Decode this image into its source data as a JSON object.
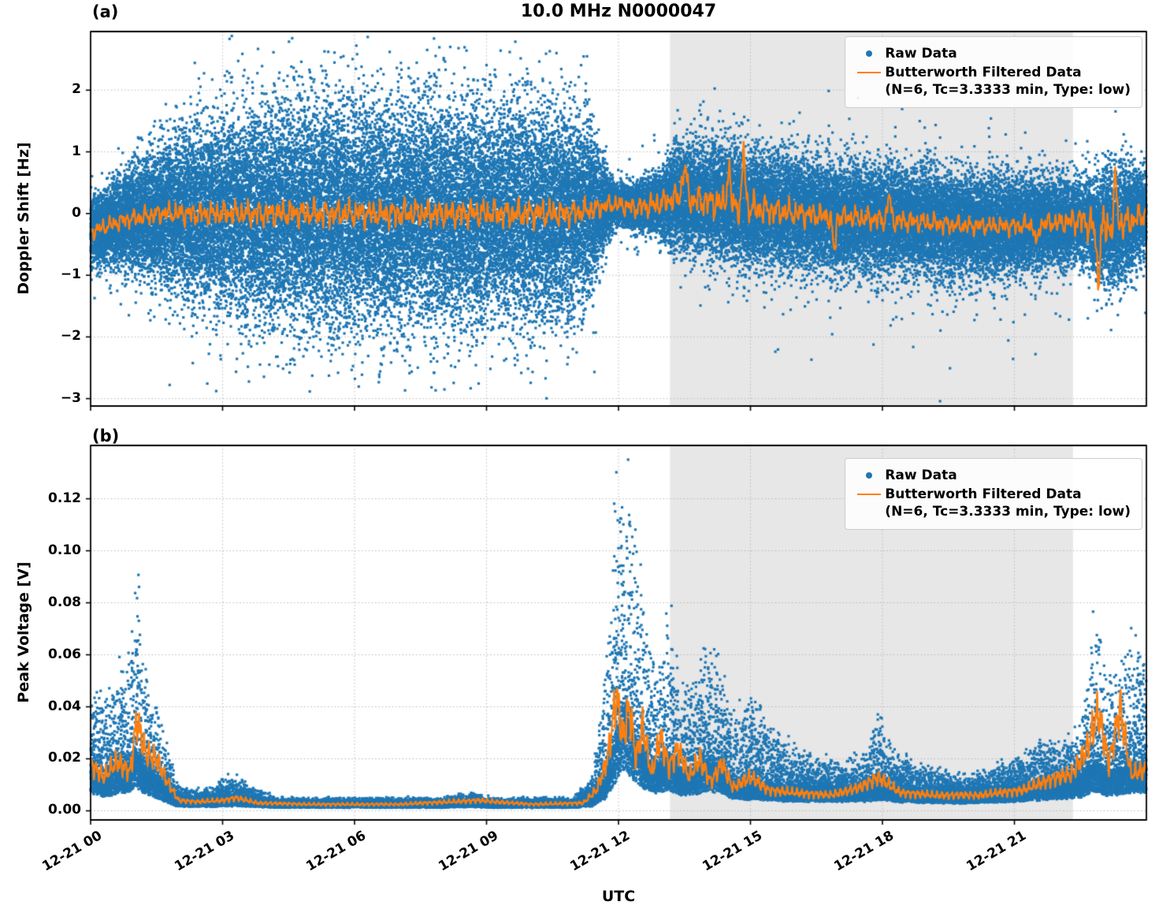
{
  "title": "10.0 MHz N0000047",
  "legend": {
    "raw_label": "Raw Data",
    "filtered_label": "Butterworth Filtered Data",
    "filtered_sublabel": "(N=6, Tc=3.3333 min, Type: low)"
  },
  "colors": {
    "raw": "#1f77b4",
    "filtered": "#ff7f0e",
    "shade": "#e7e7e7",
    "grid": "#b8b8b8"
  },
  "chart_data": {
    "type": "scatter",
    "title": "10.0 MHz N0000047",
    "x_axis": {
      "label": "UTC",
      "xlim": [
        0,
        24
      ],
      "tick_hours": [
        0,
        3,
        6,
        9,
        12,
        15,
        18,
        21
      ],
      "tick_labels": [
        "12-21 00",
        "12-21 03",
        "12-21 06",
        "12-21 09",
        "12-21 12",
        "12-21 15",
        "12-21 18",
        "12-21 21"
      ]
    },
    "shaded_region_hours": [
      13.17,
      22.33
    ],
    "panels": [
      {
        "panel_label": "(a)",
        "ylabel": "Doppler Shift [Hz]",
        "ylim": [
          -3.12,
          2.95
        ],
        "yticks": [
          2,
          1,
          0,
          -1,
          -2,
          -3
        ],
        "ytick_labels": [
          "2",
          "1",
          "0",
          "−1",
          "−2",
          "−3"
        ],
        "series": [
          {
            "name": "Raw Data",
            "type": "scatter",
            "points_per_hour": 2400,
            "outlier_fraction": 0.015,
            "outlier_scale": 2.3,
            "envelope": {
              "hours": [
                0,
                0.4,
                0.8,
                1.2,
                1.6,
                2.0,
                2.5,
                3.0,
                3.5,
                4.0,
                5.0,
                6.0,
                7.0,
                8.0,
                9.0,
                10.0,
                10.8,
                11.3,
                11.6,
                11.9,
                12.4,
                12.9,
                13.3,
                14.0,
                15.0,
                16.0,
                17.0,
                18.0,
                19.0,
                20.0,
                21.0,
                22.0,
                22.5,
                22.9,
                23.3,
                23.7,
                24.0
              ],
              "center": [
                -0.3,
                -0.2,
                -0.1,
                -0.05,
                0,
                0,
                0,
                0,
                0,
                0,
                0,
                0,
                0,
                0,
                0,
                0,
                0,
                0.05,
                0.1,
                0.15,
                0.1,
                0.15,
                0.25,
                0.2,
                0.1,
                0.0,
                -0.05,
                -0.1,
                -0.15,
                -0.2,
                -0.2,
                -0.15,
                -0.1,
                -0.25,
                -0.2,
                -0.1,
                0
              ],
              "sigma": [
                0.25,
                0.3,
                0.38,
                0.45,
                0.55,
                0.62,
                0.7,
                0.75,
                0.8,
                0.85,
                0.88,
                0.88,
                0.88,
                0.86,
                0.86,
                0.85,
                0.82,
                0.75,
                0.4,
                0.17,
                0.17,
                0.22,
                0.4,
                0.44,
                0.44,
                0.43,
                0.42,
                0.42,
                0.42,
                0.4,
                0.38,
                0.35,
                0.3,
                0.42,
                0.5,
                0.4,
                0.3
              ]
            }
          },
          {
            "name": "Butterworth Filtered Data (N=6, Tc=3.3333 min, Type: low)",
            "type": "line",
            "amp": {
              "hours": [
                0,
                1,
                2,
                3,
                5,
                8,
                10.5,
                11.4,
                11.8,
                12.3,
                12.8,
                13.3,
                14.0,
                14.6,
                15.2,
                16,
                17,
                18,
                19,
                20,
                21,
                22,
                22.6,
                23.0,
                23.4,
                24
              ],
              "values": [
                0.15,
                0.18,
                0.22,
                0.25,
                0.27,
                0.28,
                0.28,
                0.22,
                0.18,
                0.2,
                0.24,
                0.26,
                0.3,
                0.34,
                0.3,
                0.25,
                0.22,
                0.22,
                0.2,
                0.18,
                0.18,
                0.2,
                0.3,
                0.45,
                0.32,
                0.22
              ]
            },
            "events": [
              [
                13.5,
                0.5,
                0.07
              ],
              [
                14.5,
                0.55,
                0.05
              ],
              [
                14.85,
                0.9,
                0.045
              ],
              [
                16.9,
                -0.55,
                0.05
              ],
              [
                18.15,
                0.4,
                0.05
              ],
              [
                21.5,
                -0.35,
                0.05
              ],
              [
                22.9,
                -0.8,
                0.05
              ],
              [
                23.3,
                0.7,
                0.05
              ]
            ]
          }
        ]
      },
      {
        "panel_label": "(b)",
        "ylabel": "Peak Voltage [V]",
        "ylim": [
          -0.0035,
          0.1405
        ],
        "yticks": [
          0.12,
          0.1,
          0.08,
          0.06,
          0.04,
          0.02,
          0.0
        ],
        "ytick_labels": [
          "0.12",
          "0.10",
          "0.08",
          "0.06",
          "0.04",
          "0.02",
          "0.00"
        ],
        "series": [
          {
            "name": "Raw Data",
            "type": "scatter",
            "points_per_hour": 1500,
            "envelope": {
              "hours": [
                0,
                0.3,
                0.6,
                0.9,
                1.05,
                1.2,
                1.45,
                1.7,
                1.95,
                2.3,
                2.8,
                3.1,
                3.4,
                3.8,
                4.2,
                6.0,
                8.0,
                8.7,
                9.0,
                10.0,
                11.0,
                11.4,
                11.7,
                11.9,
                12.1,
                12.3,
                12.6,
                12.9,
                13.15,
                13.4,
                13.7,
                14.0,
                14.3,
                14.6,
                15.0,
                15.4,
                15.8,
                16.3,
                17.0,
                17.6,
                17.9,
                18.3,
                19.0,
                20.0,
                21.0,
                21.6,
                22.1,
                22.5,
                22.85,
                23.1,
                23.4,
                23.7,
                24.0
              ],
              "base": [
                0.012,
                0.009,
                0.011,
                0.013,
                0.016,
                0.012,
                0.009,
                0.006,
                0.003,
                0.0025,
                0.0025,
                0.003,
                0.003,
                0.0025,
                0.002,
                0.002,
                0.002,
                0.0025,
                0.002,
                0.002,
                0.002,
                0.003,
                0.008,
                0.018,
                0.028,
                0.022,
                0.014,
                0.012,
                0.014,
                0.01,
                0.011,
                0.013,
                0.012,
                0.008,
                0.007,
                0.007,
                0.006,
                0.006,
                0.006,
                0.006,
                0.007,
                0.006,
                0.005,
                0.005,
                0.006,
                0.007,
                0.008,
                0.009,
                0.013,
                0.01,
                0.011,
                0.012,
                0.012
              ],
              "peak": [
                0.045,
                0.04,
                0.05,
                0.055,
                0.085,
                0.055,
                0.04,
                0.025,
                0.01,
                0.007,
                0.008,
                0.012,
                0.011,
                0.007,
                0.004,
                0.004,
                0.004,
                0.006,
                0.004,
                0.004,
                0.004,
                0.012,
                0.05,
                0.1,
                0.132,
                0.11,
                0.07,
                0.05,
                0.077,
                0.045,
                0.045,
                0.06,
                0.055,
                0.035,
                0.042,
                0.032,
                0.025,
                0.02,
                0.016,
                0.022,
                0.033,
                0.02,
                0.015,
                0.012,
                0.018,
                0.025,
                0.024,
                0.03,
                0.077,
                0.045,
                0.05,
                0.065,
                0.06
              ]
            }
          },
          {
            "name": "Butterworth Filtered Data (N=6, Tc=3.3333 min, Type: low)",
            "type": "line",
            "wiggle_rel": 0.3,
            "keypoints": {
              "hours": [
                0,
                0.3,
                0.6,
                0.9,
                1.05,
                1.25,
                1.5,
                1.75,
                2.0,
                2.4,
                3.0,
                3.3,
                3.8,
                5.0,
                7.0,
                8.8,
                10.0,
                11.2,
                11.5,
                11.75,
                11.95,
                12.1,
                12.25,
                12.4,
                12.55,
                12.75,
                12.95,
                13.15,
                13.35,
                13.6,
                13.85,
                14.1,
                14.35,
                14.6,
                15.0,
                15.4,
                16.0,
                16.8,
                17.5,
                17.9,
                18.4,
                19.2,
                20.2,
                21.2,
                21.8,
                22.3,
                22.65,
                22.9,
                23.15,
                23.4,
                23.65,
                24.0
              ],
              "values": [
                0.018,
                0.013,
                0.019,
                0.015,
                0.035,
                0.022,
                0.02,
                0.011,
                0.004,
                0.0035,
                0.004,
                0.005,
                0.003,
                0.0025,
                0.0025,
                0.004,
                0.0025,
                0.003,
                0.008,
                0.02,
                0.044,
                0.028,
                0.04,
                0.02,
                0.033,
                0.014,
                0.028,
                0.017,
                0.024,
                0.013,
                0.02,
                0.011,
                0.018,
                0.009,
                0.013,
                0.008,
                0.007,
                0.006,
                0.009,
                0.013,
                0.007,
                0.006,
                0.006,
                0.008,
                0.012,
                0.014,
                0.024,
                0.038,
                0.018,
                0.04,
                0.014,
                0.016
              ]
            }
          }
        ]
      }
    ]
  }
}
